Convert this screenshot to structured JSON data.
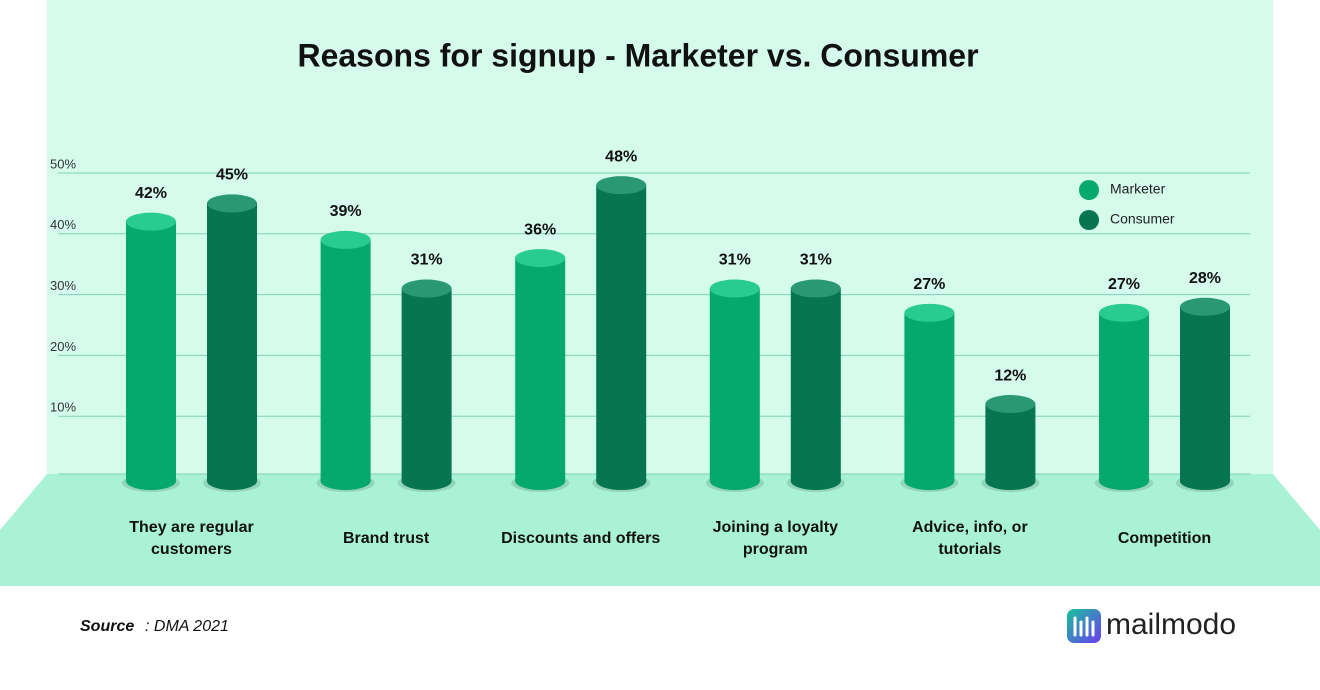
{
  "chart_data": {
    "type": "bar",
    "title": "Reasons for signup - Marketer vs. Consumer",
    "categories": [
      "They are regular customers",
      "Brand trust",
      "Discounts and offers",
      "Joining a loyalty program",
      "Advice, info, or tutorials",
      "Competition"
    ],
    "series": [
      {
        "name": "Marketer",
        "color": "#05a86d",
        "values": [
          42,
          39,
          36,
          31,
          27,
          27
        ],
        "value_labels": [
          "42%",
          "39%",
          "36%",
          "31%",
          "27%",
          "27%"
        ]
      },
      {
        "name": "Consumer",
        "color": "#067550",
        "values": [
          45,
          31,
          48,
          31,
          12,
          28
        ],
        "value_labels": [
          "45%",
          "31%",
          "48%",
          "31%",
          "12%",
          "28%"
        ]
      }
    ],
    "ylim": [
      0,
      50
    ],
    "yticks": [
      {
        "value": 10,
        "label": "10%"
      },
      {
        "value": 20,
        "label": "20%"
      },
      {
        "value": 30,
        "label": "30%"
      },
      {
        "value": 40,
        "label": "40%"
      },
      {
        "value": 50,
        "label": "50%"
      }
    ],
    "grid": true
  },
  "source": {
    "label": "Source",
    "text": ": DMA 2021"
  },
  "brand": "mailmodo"
}
